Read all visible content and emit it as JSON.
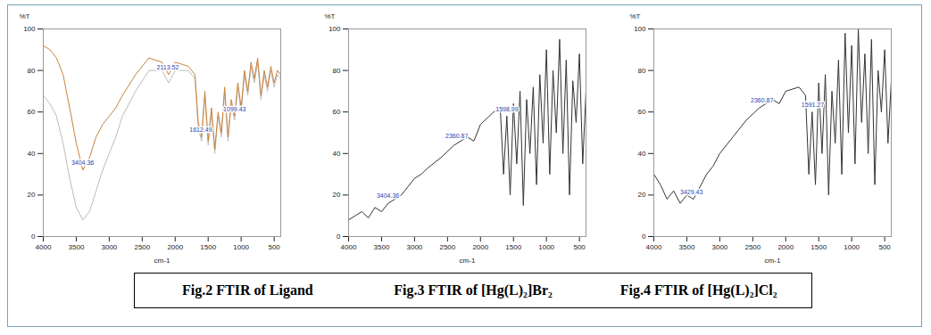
{
  "chart_data": [
    {
      "type": "line",
      "title": "Fig.2 FTIR of Ligand",
      "xlabel": "cm-1",
      "ylabel": "%T",
      "x": [
        4000,
        3900,
        3800,
        3700,
        3600,
        3500,
        3400,
        3300,
        3200,
        3100,
        3000,
        2900,
        2800,
        2600,
        2400,
        2200,
        2100,
        2000,
        1800,
        1700,
        1650,
        1600,
        1550,
        1500,
        1450,
        1400,
        1350,
        1300,
        1250,
        1200,
        1150,
        1100,
        1050,
        1000,
        950,
        900,
        850,
        800,
        750,
        700,
        650,
        600,
        550,
        500,
        450,
        400
      ],
      "series": [
        {
          "color": "#c8823c",
          "values": [
            92,
            90,
            86,
            78,
            62,
            45,
            32,
            38,
            48,
            54,
            58,
            62,
            68,
            78,
            86,
            84,
            78,
            84,
            82,
            78,
            55,
            48,
            70,
            46,
            62,
            42,
            60,
            50,
            72,
            48,
            66,
            58,
            74,
            62,
            80,
            70,
            84,
            76,
            86,
            68,
            80,
            72,
            82,
            74,
            80,
            78
          ]
        },
        {
          "color": "#bdbdbd",
          "values": [
            68,
            64,
            58,
            45,
            28,
            14,
            8,
            12,
            22,
            32,
            40,
            48,
            58,
            70,
            80,
            80,
            74,
            80,
            80,
            76,
            52,
            46,
            68,
            44,
            60,
            40,
            58,
            48,
            70,
            46,
            64,
            56,
            72,
            60,
            78,
            68,
            82,
            74,
            84,
            66,
            78,
            70,
            80,
            72,
            78,
            76
          ]
        }
      ],
      "annotations": [
        {
          "x": 3404,
          "y": 32,
          "text": "3404.36"
        },
        {
          "x": 2113,
          "y": 78,
          "text": "2113.52"
        },
        {
          "x": 1612,
          "y": 48,
          "text": "1612.49"
        },
        {
          "x": 1100,
          "y": 58,
          "text": "1099.43"
        }
      ],
      "xlim": [
        4000,
        400
      ],
      "xticks": [
        4000,
        3500,
        3000,
        2500,
        2000,
        1500,
        1000,
        500
      ],
      "ylim": [
        0,
        100
      ],
      "yticks": [
        0,
        20,
        40,
        60,
        80,
        100
      ],
      "grid": false
    },
    {
      "type": "line",
      "title": "Fig.3 FTIR of [Hg(L)₂]Br₂",
      "xlabel": "cm-1",
      "ylabel": "%T",
      "color": "#333333",
      "x": [
        4000,
        3900,
        3800,
        3700,
        3600,
        3500,
        3400,
        3300,
        3200,
        3100,
        3000,
        2900,
        2800,
        2600,
        2400,
        2200,
        2100,
        2000,
        1800,
        1700,
        1650,
        1600,
        1550,
        1500,
        1450,
        1400,
        1350,
        1300,
        1250,
        1200,
        1150,
        1100,
        1050,
        1000,
        950,
        900,
        850,
        800,
        750,
        700,
        650,
        600,
        550,
        500,
        450,
        400
      ],
      "values": [
        8,
        10,
        12,
        9,
        14,
        12,
        16,
        18,
        20,
        24,
        28,
        30,
        33,
        38,
        44,
        48,
        46,
        54,
        60,
        62,
        30,
        58,
        20,
        64,
        35,
        70,
        15,
        66,
        40,
        72,
        25,
        78,
        45,
        90,
        30,
        80,
        50,
        95,
        40,
        85,
        20,
        75,
        55,
        88,
        35,
        70
      ],
      "annotations": [
        {
          "x": 3404,
          "y": 16,
          "text": "3404.36"
        },
        {
          "x": 2360,
          "y": 45,
          "text": "2360.87"
        },
        {
          "x": 1598,
          "y": 58,
          "text": "1598.99"
        }
      ],
      "xlim": [
        4000,
        400
      ],
      "xticks": [
        4000,
        3500,
        3000,
        2500,
        2000,
        1500,
        1000,
        500
      ],
      "ylim": [
        0,
        100
      ],
      "yticks": [
        0,
        20,
        40,
        60,
        80,
        100
      ],
      "grid": false
    },
    {
      "type": "line",
      "title": "Fig.4 FTIR of [Hg(L)₂]Cl₂",
      "xlabel": "cm-1",
      "ylabel": "%T",
      "color": "#333333",
      "x": [
        4000,
        3900,
        3800,
        3700,
        3600,
        3500,
        3400,
        3300,
        3200,
        3100,
        3000,
        2900,
        2800,
        2600,
        2400,
        2200,
        2100,
        2000,
        1800,
        1700,
        1650,
        1600,
        1550,
        1500,
        1450,
        1400,
        1350,
        1300,
        1250,
        1200,
        1150,
        1100,
        1050,
        1000,
        950,
        900,
        850,
        800,
        750,
        700,
        650,
        600,
        550,
        500,
        450,
        400
      ],
      "values": [
        30,
        25,
        18,
        22,
        16,
        20,
        18,
        24,
        30,
        34,
        40,
        44,
        48,
        56,
        62,
        66,
        64,
        70,
        72,
        68,
        30,
        60,
        25,
        74,
        40,
        78,
        20,
        70,
        45,
        85,
        30,
        98,
        50,
        92,
        35,
        100,
        55,
        88,
        40,
        95,
        25,
        80,
        60,
        90,
        45,
        75
      ],
      "annotations": [
        {
          "x": 3429,
          "y": 18,
          "text": "3429.43"
        },
        {
          "x": 2360,
          "y": 62,
          "text": "2360.87"
        },
        {
          "x": 1591,
          "y": 60,
          "text": "1591.27"
        }
      ],
      "xlim": [
        4000,
        400
      ],
      "xticks": [
        4000,
        3500,
        3000,
        2500,
        2000,
        1500,
        1000,
        500
      ],
      "ylim": [
        0,
        100
      ],
      "yticks": [
        0,
        20,
        40,
        60,
        80,
        100
      ],
      "grid": false
    }
  ]
}
